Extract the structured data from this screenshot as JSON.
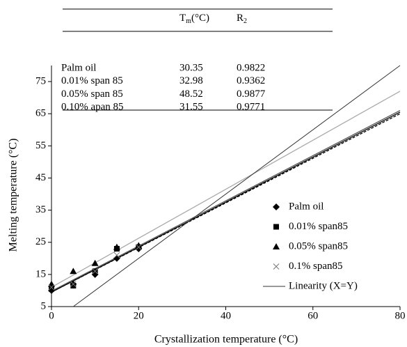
{
  "table": {
    "header": [
      {
        "main": "T",
        "sub": "m",
        "rest": "(°C)"
      },
      {
        "main": "R",
        "sub": "2"
      }
    ],
    "rows": [
      [
        "Palm oil",
        30.35,
        0.9822
      ],
      [
        "0.01% span 85",
        32.98,
        0.9362
      ],
      [
        "0.05% span 85",
        48.52,
        0.9877
      ],
      [
        "0.10% apan 85",
        31.55,
        0.9771
      ]
    ]
  },
  "chart_data": {
    "type": "scatter",
    "xlabel": "Crystallization temperature (°C)",
    "ylabel": "Melting temperature (°C)",
    "xlim": [
      0,
      80
    ],
    "ylim": [
      5,
      80
    ],
    "xticks": [
      0,
      20,
      40,
      60,
      80
    ],
    "yticks": [
      5,
      15,
      25,
      35,
      45,
      55,
      65,
      75
    ],
    "series": [
      {
        "name": "Palm oil",
        "marker": "diamond",
        "color": "#000000",
        "x": [
          0,
          5,
          10,
          15,
          20
        ],
        "values": [
          10,
          12,
          15,
          20,
          23
        ],
        "trend": {
          "x": [
            0,
            80
          ],
          "values": [
            9.5,
            65
          ],
          "color": "#000000",
          "dash": true
        }
      },
      {
        "name": "0.01% span85",
        "marker": "square",
        "color": "#000000",
        "x": [
          0,
          5,
          10,
          15,
          20
        ],
        "values": [
          10.5,
          11.5,
          16,
          23,
          23.5
        ],
        "trend": {
          "x": [
            0,
            80
          ],
          "values": [
            9.5,
            65.5
          ],
          "color": "#000000",
          "dash": false
        }
      },
      {
        "name": "0.05% span85",
        "marker": "triangle",
        "color": "#000000",
        "x": [
          0,
          5,
          10,
          15,
          20
        ],
        "values": [
          12,
          16,
          18.5,
          23.5,
          24
        ],
        "trend": {
          "x": [
            0,
            80
          ],
          "values": [
            11,
            72
          ],
          "color": "#aaaaaa",
          "dash": false
        }
      },
      {
        "name": "0.1% span85",
        "marker": "cross",
        "color": "#777777",
        "x": [
          0,
          5,
          10,
          15,
          20
        ],
        "values": [
          11,
          12,
          16,
          21,
          23.5
        ],
        "trend": {
          "x": [
            0,
            80
          ],
          "values": [
            9.8,
            66
          ],
          "color": "#555555",
          "dash": false
        }
      }
    ],
    "linearity": {
      "name": "Linearity (X=Y)",
      "x": [
        5,
        80
      ],
      "values": [
        5,
        80
      ],
      "color": "#333333"
    }
  }
}
